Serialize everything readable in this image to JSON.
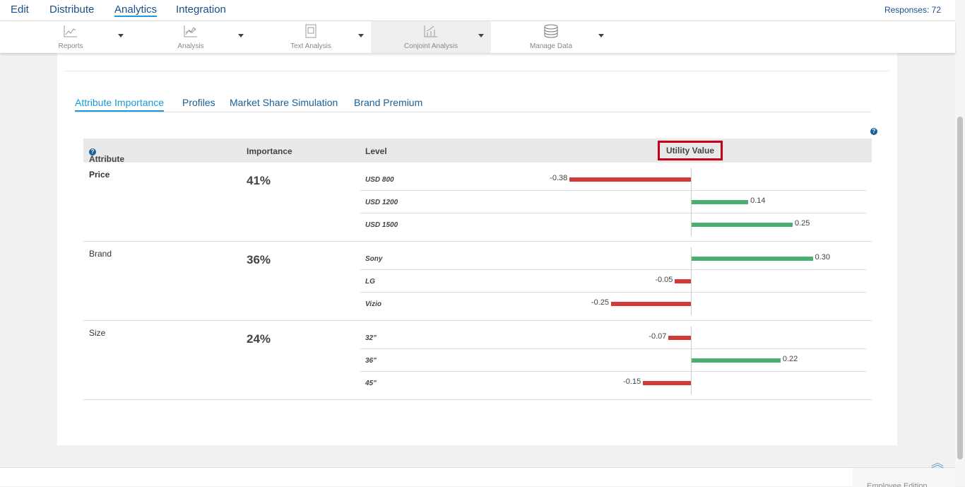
{
  "topnav": {
    "items": [
      "Edit",
      "Distribute",
      "Analytics",
      "Integration"
    ],
    "active": "Analytics",
    "responses": "Responses: 72"
  },
  "toolbar": {
    "items": [
      {
        "label": "Reports",
        "icon": "line-chart-icon"
      },
      {
        "label": "Analysis",
        "icon": "analysis-chart-icon"
      },
      {
        "label": "Text Analysis",
        "icon": "text-document-icon"
      },
      {
        "label": "Conjoint Analysis",
        "icon": "conjoint-chart-icon"
      },
      {
        "label": "Manage Data",
        "icon": "database-icon"
      }
    ],
    "selected": "Conjoint Analysis"
  },
  "tabs": [
    "Attribute Importance",
    "Profiles",
    "Market Share Simulation",
    "Brand Premium"
  ],
  "active_tab": "Attribute Importance",
  "table": {
    "headers": {
      "attribute": "Attribute",
      "importance": "Importance",
      "level": "Level",
      "utility": "Utility Value"
    },
    "rows": [
      {
        "attribute": "Price",
        "importance": "41%",
        "levels": [
          {
            "name": "USD 800",
            "value": -0.38,
            "label": "-0.38"
          },
          {
            "name": "USD 1200",
            "value": 0.14,
            "label": "0.14"
          },
          {
            "name": "USD 1500",
            "value": 0.25,
            "label": "0.25"
          }
        ]
      },
      {
        "attribute": "Brand",
        "importance": "36%",
        "levels": [
          {
            "name": "Sony",
            "value": 0.3,
            "label": "0.30"
          },
          {
            "name": "LG",
            "value": -0.05,
            "label": "-0.05"
          },
          {
            "name": "Vizio",
            "value": -0.25,
            "label": "-0.25"
          }
        ]
      },
      {
        "attribute": "Size",
        "importance": "24%",
        "levels": [
          {
            "name": "32\"",
            "value": -0.07,
            "label": "-0.07"
          },
          {
            "name": "36\"",
            "value": 0.22,
            "label": "0.22"
          },
          {
            "name": "45\"",
            "value": -0.15,
            "label": "-0.15"
          }
        ]
      }
    ]
  },
  "colors": {
    "positive": "#4caf72",
    "negative": "#d23a3a",
    "highlight": "#c4001a"
  },
  "footer": {
    "edition": "Employee Edition"
  }
}
